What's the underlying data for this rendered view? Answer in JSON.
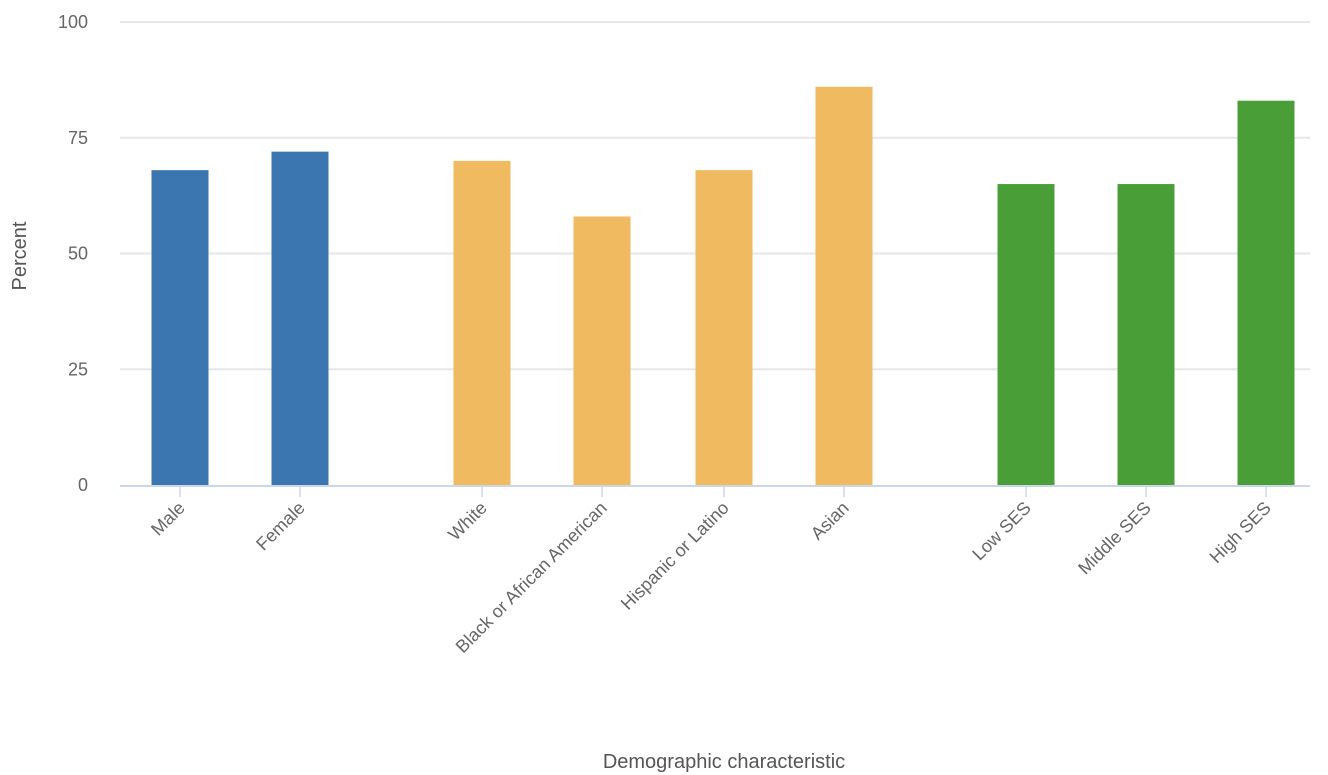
{
  "chart_data": {
    "type": "bar",
    "title": "",
    "xlabel": "Demographic characteristic",
    "ylabel": "Percent",
    "ylim": [
      0,
      100
    ],
    "yticks": [
      0,
      25,
      50,
      75,
      100
    ],
    "grid": true,
    "categories": [
      "Male",
      "Female",
      "White",
      "Black or African American",
      "Hispanic or Latino",
      "Asian",
      "Low SES",
      "Middle SES",
      "High SES"
    ],
    "values": [
      68,
      72,
      70,
      58,
      68,
      86,
      65,
      65,
      83
    ],
    "groups": [
      {
        "members": [
          "Male",
          "Female"
        ],
        "color": "#3b76b0"
      },
      {
        "members": [
          "White",
          "Black or African American",
          "Hispanic or Latino",
          "Asian"
        ],
        "color": "#f0ba60"
      },
      {
        "members": [
          "Low SES",
          "Middle SES",
          "High SES"
        ],
        "color": "#4a9e38"
      }
    ],
    "colors": {
      "grid": "#e6e6e6",
      "axis": "#ccd6eb",
      "tick_text": "#666666",
      "title_text": "#555555"
    }
  }
}
